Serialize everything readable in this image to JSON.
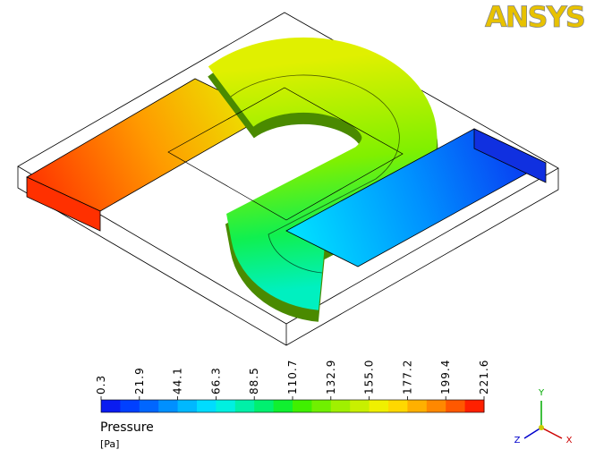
{
  "logo": "ANSYS",
  "legend": {
    "title": "Pressure",
    "unit": "[Pa]",
    "tick_labels": [
      "0.3",
      "21.9",
      "44.1",
      "66.3",
      "88.5",
      "110.7",
      "132.9",
      "155.0",
      "177.2",
      "199.4",
      "221.6"
    ]
  },
  "triad": {
    "y": "Y",
    "z": "Z",
    "x": "X"
  }
}
